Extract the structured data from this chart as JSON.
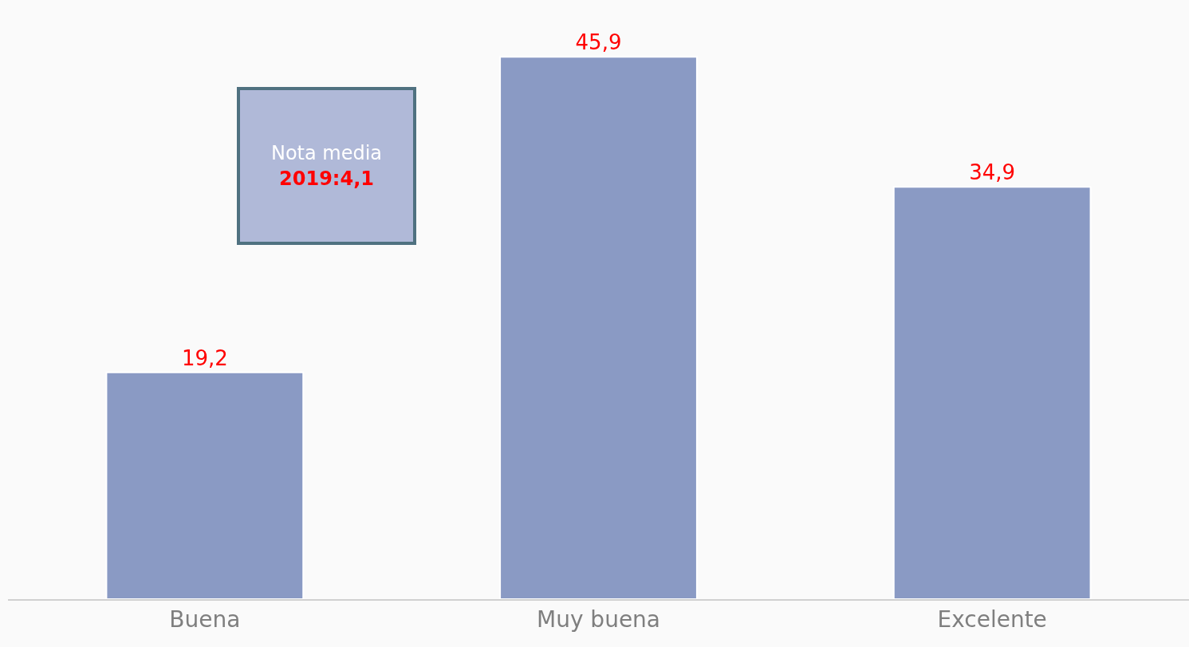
{
  "chart_data": {
    "type": "bar",
    "categories": [
      "Buena",
      "Muy buena",
      "Excelente"
    ],
    "values": [
      19.2,
      45.9,
      34.9
    ],
    "value_labels": [
      "19,2",
      "45,9",
      "34,9"
    ],
    "color": "#8a9ac4",
    "annotations": [
      "Nota media",
      "2019:4,1"
    ],
    "legend": false
  }
}
